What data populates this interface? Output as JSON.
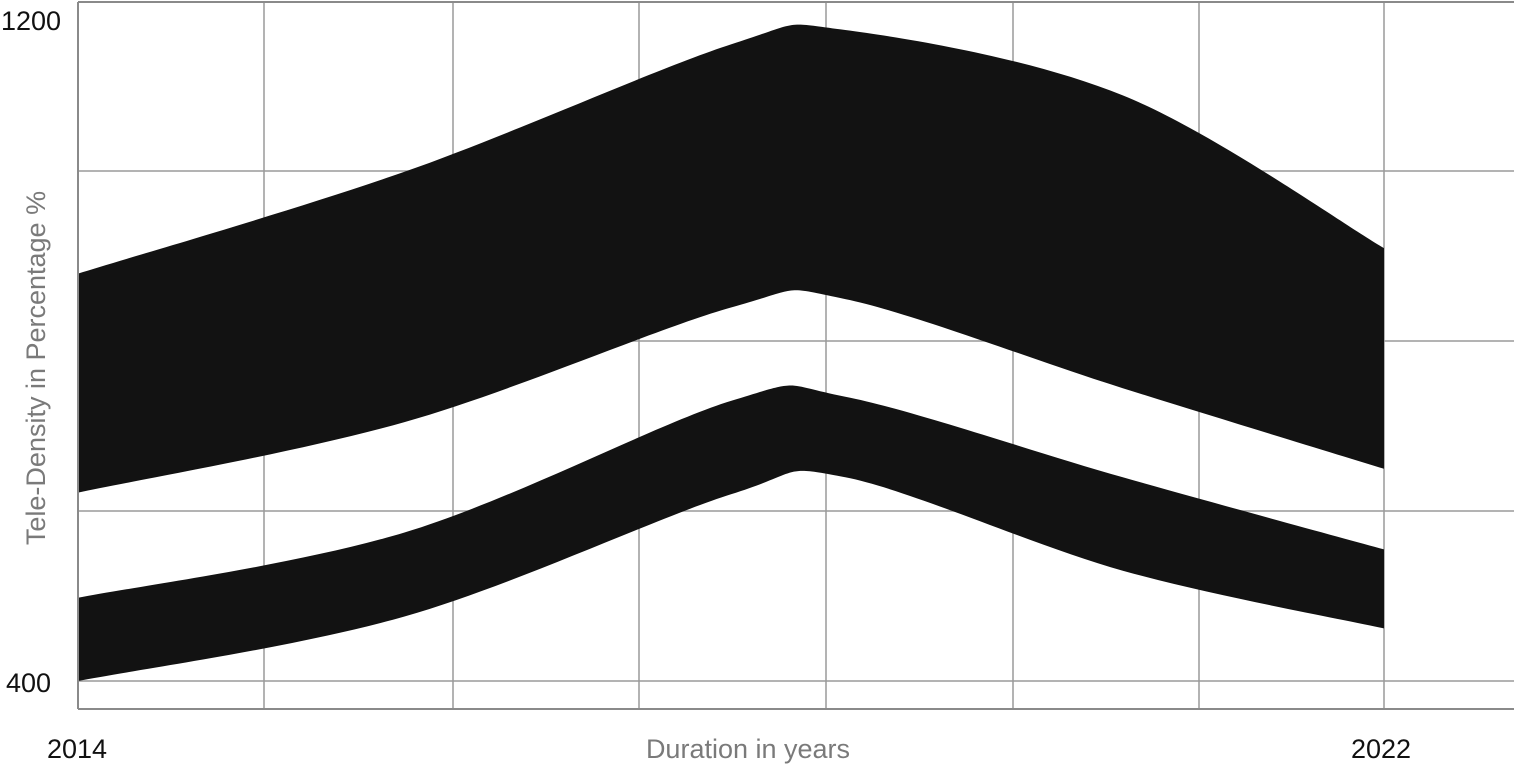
{
  "chart_data": {
    "type": "area",
    "title": "",
    "xlabel": "Duration in years",
    "ylabel": "Tele-Density in Percentage %",
    "x_ticks": [
      "2014",
      "2022"
    ],
    "y_ticks": [
      "1200",
      "400"
    ],
    "xlim": [
      2014,
      2022
    ],
    "ylim": [
      400,
      1200
    ],
    "grid": true,
    "legend": "none",
    "series": [
      {
        "x": [
          2014,
          2016,
          2018,
          2018.7,
          2020.4,
          2022
        ],
        "upper": [
          880,
          1000,
          1150,
          1167,
          1090,
          910
        ],
        "lower": [
          622,
          705,
          840,
          850,
          745,
          650
        ],
        "color": "#121212"
      },
      {
        "x": [
          2014,
          2016,
          2018,
          2018.7,
          2020.4,
          2022
        ],
        "upper": [
          498,
          575,
          730,
          735,
          640,
          555
        ],
        "lower": [
          400,
          476,
          620,
          640,
          530,
          462
        ],
        "color": "#121212"
      }
    ]
  }
}
